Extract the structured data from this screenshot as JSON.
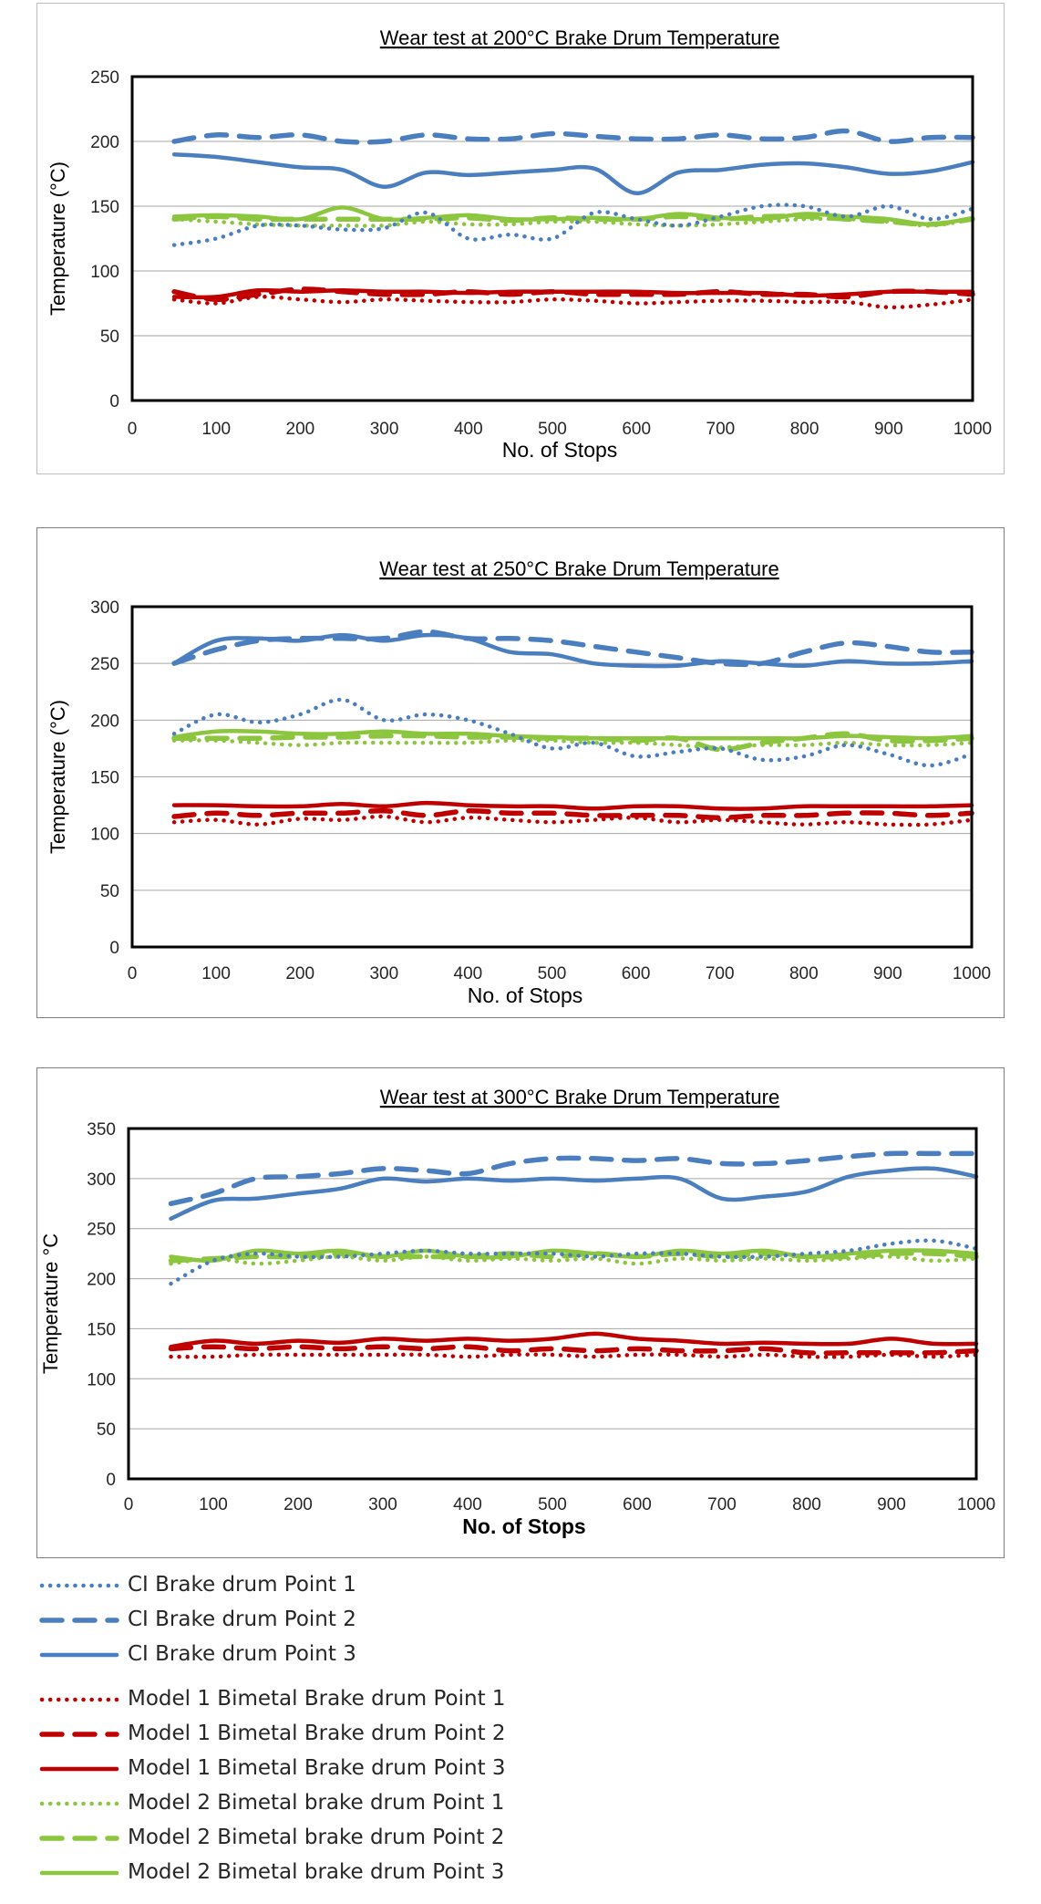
{
  "series_styles": [
    {
      "color": "#4a7ebf",
      "dash": "dotted",
      "width": 4.5
    },
    {
      "color": "#4a7ebf",
      "dash": "dashed",
      "width": 5.5
    },
    {
      "color": "#4a7ebf",
      "dash": "solid",
      "width": 4.5
    },
    {
      "color": "#c00000",
      "dash": "dotted",
      "width": 4.5
    },
    {
      "color": "#c00000",
      "dash": "dashed",
      "width": 5.5
    },
    {
      "color": "#c00000",
      "dash": "solid",
      "width": 4.5
    },
    {
      "color": "#8cc63e",
      "dash": "dotted",
      "width": 4.5
    },
    {
      "color": "#8cc63e",
      "dash": "dashed",
      "width": 5.5
    },
    {
      "color": "#8cc63e",
      "dash": "solid",
      "width": 4.5
    }
  ],
  "legend": [
    "CI Brake drum Point 1",
    "CI Brake drum Point 2",
    "CI Brake drum Point 3",
    "Model 1 Bimetal Brake drum Point 1",
    "Model 1 Bimetal Brake drum Point 2",
    "Model 1 Bimetal Brake drum Point 3",
    "Model 2 Bimetal brake drum Point 1",
    "Model 2 Bimetal brake drum Point 2",
    "Model 2 Bimetal brake drum Point 3"
  ],
  "chart_data": [
    {
      "type": "line",
      "title": "Wear test at 200°C Brake Drum Temperature",
      "xlabel": "No. of Stops",
      "ylabel": "Temperature  (°C)",
      "xlim": [
        0,
        1000
      ],
      "ylim": [
        0,
        250
      ],
      "xticks": [
        "0",
        "100",
        "200",
        "300",
        "400",
        "500",
        "600",
        "700",
        "800",
        "900",
        "1000"
      ],
      "yticks": [
        "0",
        "50",
        "100",
        "150",
        "200",
        "250"
      ],
      "grid": true,
      "x": [
        50,
        100,
        150,
        200,
        250,
        300,
        350,
        400,
        450,
        500,
        550,
        600,
        650,
        700,
        750,
        800,
        850,
        900,
        950,
        1000
      ],
      "series": [
        {
          "name": "CI Brake drum Point 1",
          "values": [
            120,
            125,
            135,
            135,
            132,
            133,
            145,
            125,
            128,
            125,
            145,
            140,
            135,
            142,
            150,
            150,
            142,
            150,
            140,
            148
          ]
        },
        {
          "name": "CI Brake drum Point 2",
          "values": [
            200,
            205,
            203,
            205,
            200,
            200,
            205,
            202,
            202,
            206,
            204,
            202,
            202,
            205,
            202,
            203,
            208,
            200,
            203,
            203
          ]
        },
        {
          "name": "CI Brake drum Point 3",
          "values": [
            190,
            188,
            184,
            180,
            178,
            165,
            176,
            174,
            176,
            178,
            179,
            160,
            176,
            178,
            182,
            183,
            180,
            175,
            177,
            184
          ]
        },
        {
          "name": "Model 1 Bimetal Brake drum Point 1",
          "values": [
            78,
            75,
            80,
            78,
            76,
            78,
            77,
            76,
            76,
            78,
            77,
            75,
            76,
            77,
            77,
            76,
            76,
            72,
            74,
            78
          ]
        },
        {
          "name": "Model 1 Bimetal Brake drum Point 2",
          "values": [
            84,
            78,
            82,
            86,
            84,
            82,
            82,
            84,
            82,
            84,
            82,
            82,
            82,
            84,
            82,
            82,
            80,
            84,
            84,
            82
          ]
        },
        {
          "name": "Model 1 Bimetal Brake drum Point 3",
          "values": [
            80,
            80,
            85,
            84,
            85,
            84,
            84,
            83,
            84,
            84,
            84,
            84,
            83,
            83,
            83,
            81,
            82,
            84,
            84,
            84
          ]
        },
        {
          "name": "Model 2 Bimetal brake drum Point 1",
          "values": [
            140,
            138,
            136,
            135,
            135,
            135,
            138,
            136,
            136,
            138,
            138,
            136,
            135,
            136,
            138,
            140,
            140,
            138,
            135,
            140
          ]
        },
        {
          "name": "Model 2 Bimetal brake drum Point 2",
          "values": [
            140,
            142,
            140,
            140,
            140,
            140,
            140,
            141,
            139,
            141,
            140,
            140,
            142,
            140,
            142,
            142,
            140,
            138,
            136,
            140
          ]
        },
        {
          "name": "Model 2 Bimetal brake drum Point 3",
          "values": [
            142,
            143,
            142,
            140,
            149,
            140,
            141,
            143,
            140,
            140,
            141,
            140,
            144,
            141,
            140,
            144,
            142,
            140,
            136,
            141
          ]
        }
      ]
    },
    {
      "type": "line",
      "title": "Wear test at 250°C Brake Drum Temperature",
      "xlabel": "No. of Stops",
      "ylabel": "Temperature  (°C)",
      "xlim": [
        0,
        1000
      ],
      "ylim": [
        0,
        300
      ],
      "xticks": [
        "0",
        "100",
        "200",
        "300",
        "400",
        "500",
        "600",
        "700",
        "800",
        "900",
        "1000"
      ],
      "yticks": [
        "0",
        "50",
        "100",
        "150",
        "200",
        "250",
        "300"
      ],
      "grid": true,
      "x": [
        50,
        100,
        150,
        200,
        250,
        300,
        350,
        400,
        450,
        500,
        550,
        600,
        650,
        700,
        750,
        800,
        850,
        900,
        950,
        1000
      ],
      "series": [
        {
          "name": "CI Brake drum Point 1",
          "values": [
            188,
            205,
            198,
            205,
            218,
            200,
            205,
            200,
            188,
            175,
            180,
            168,
            172,
            175,
            165,
            168,
            178,
            170,
            160,
            170
          ]
        },
        {
          "name": "CI Brake drum Point 2",
          "values": [
            250,
            262,
            270,
            272,
            272,
            272,
            278,
            272,
            272,
            270,
            265,
            260,
            255,
            250,
            250,
            260,
            268,
            265,
            260,
            260
          ]
        },
        {
          "name": "CI Brake drum Point 3",
          "values": [
            250,
            270,
            272,
            270,
            275,
            270,
            275,
            272,
            260,
            258,
            250,
            248,
            248,
            252,
            250,
            248,
            252,
            250,
            250,
            252
          ]
        },
        {
          "name": "Model 1 Bimetal Brake drum Point 1",
          "values": [
            110,
            112,
            108,
            113,
            112,
            115,
            110,
            114,
            112,
            110,
            112,
            114,
            110,
            112,
            110,
            108,
            110,
            108,
            108,
            112
          ]
        },
        {
          "name": "Model 1 Bimetal Brake drum Point 2",
          "values": [
            115,
            118,
            116,
            118,
            118,
            120,
            116,
            120,
            118,
            118,
            116,
            116,
            116,
            114,
            116,
            116,
            118,
            118,
            116,
            118
          ]
        },
        {
          "name": "Model 1 Bimetal Brake drum Point 3",
          "values": [
            125,
            125,
            124,
            124,
            126,
            124,
            127,
            125,
            124,
            124,
            122,
            124,
            124,
            122,
            122,
            124,
            124,
            124,
            124,
            125
          ]
        },
        {
          "name": "Model 2 Bimetal brake drum Point 1",
          "values": [
            182,
            182,
            180,
            178,
            180,
            180,
            180,
            180,
            182,
            182,
            180,
            180,
            178,
            176,
            178,
            178,
            180,
            178,
            178,
            180
          ]
        },
        {
          "name": "Model 2 Bimetal brake drum Point 2",
          "values": [
            184,
            184,
            184,
            185,
            185,
            186,
            186,
            185,
            185,
            184,
            184,
            182,
            184,
            174,
            180,
            184,
            188,
            182,
            182,
            184
          ]
        },
        {
          "name": "Model 2 Bimetal brake drum Point 3",
          "values": [
            185,
            190,
            190,
            188,
            188,
            190,
            188,
            188,
            186,
            185,
            184,
            184,
            184,
            184,
            184,
            184,
            186,
            185,
            184,
            186
          ]
        }
      ]
    },
    {
      "type": "line",
      "title": "Wear test at 300°C Brake Drum Temperature",
      "xlabel": "No. of Stops",
      "ylabel": "Temperature  °C",
      "xlim": [
        0,
        1000
      ],
      "ylim": [
        0,
        350
      ],
      "xticks": [
        "0",
        "100",
        "200",
        "300",
        "400",
        "500",
        "600",
        "700",
        "800",
        "900",
        "1000"
      ],
      "yticks": [
        "0",
        "50",
        "100",
        "150",
        "200",
        "250",
        "300",
        "350"
      ],
      "grid": true,
      "x": [
        50,
        100,
        150,
        200,
        250,
        300,
        350,
        400,
        450,
        500,
        550,
        600,
        650,
        700,
        750,
        800,
        850,
        900,
        950,
        1000
      ],
      "series": [
        {
          "name": "CI Brake drum Point 1",
          "values": [
            195,
            218,
            225,
            222,
            222,
            225,
            228,
            225,
            225,
            225,
            222,
            225,
            225,
            222,
            222,
            225,
            228,
            235,
            238,
            230
          ]
        },
        {
          "name": "CI Brake drum Point 2",
          "values": [
            275,
            285,
            300,
            302,
            305,
            310,
            308,
            305,
            315,
            320,
            320,
            318,
            320,
            315,
            315,
            318,
            322,
            325,
            325,
            325
          ]
        },
        {
          "name": "CI Brake drum Point 3",
          "values": [
            260,
            278,
            280,
            285,
            290,
            300,
            297,
            300,
            298,
            300,
            298,
            300,
            300,
            280,
            282,
            287,
            302,
            308,
            310,
            302
          ]
        },
        {
          "name": "Model 1 Bimetal Brake drum Point 1",
          "values": [
            122,
            122,
            124,
            124,
            124,
            124,
            124,
            122,
            124,
            124,
            122,
            124,
            124,
            122,
            124,
            122,
            122,
            124,
            122,
            124
          ]
        },
        {
          "name": "Model 1 Bimetal Brake drum Point 2",
          "values": [
            130,
            132,
            130,
            132,
            130,
            132,
            130,
            132,
            128,
            130,
            128,
            130,
            128,
            128,
            130,
            126,
            126,
            126,
            126,
            128
          ]
        },
        {
          "name": "Model 1 Bimetal Brake drum Point 3",
          "values": [
            132,
            138,
            135,
            138,
            136,
            140,
            138,
            140,
            138,
            140,
            145,
            140,
            138,
            135,
            136,
            135,
            135,
            140,
            135,
            135
          ]
        },
        {
          "name": "Model 2 Bimetal brake drum Point 1",
          "values": [
            215,
            220,
            215,
            218,
            222,
            218,
            222,
            218,
            220,
            218,
            220,
            215,
            220,
            218,
            220,
            218,
            220,
            222,
            218,
            220
          ]
        },
        {
          "name": "Model 2 Bimetal brake drum Point 2",
          "values": [
            218,
            220,
            222,
            222,
            225,
            222,
            222,
            222,
            225,
            222,
            225,
            222,
            225,
            222,
            225,
            222,
            222,
            225,
            225,
            222
          ]
        },
        {
          "name": "Model 2 Bimetal brake drum Point 3",
          "values": [
            222,
            218,
            228,
            225,
            228,
            222,
            228,
            222,
            222,
            228,
            225,
            222,
            228,
            225,
            228,
            222,
            225,
            228,
            228,
            225
          ]
        }
      ]
    }
  ]
}
